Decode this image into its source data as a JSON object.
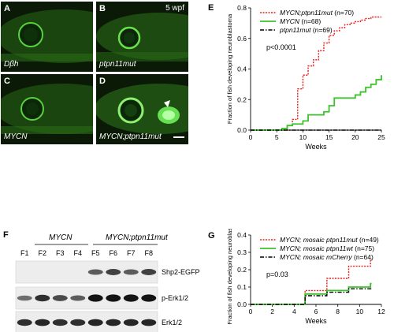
{
  "fish": {
    "panels": [
      {
        "letter": "A",
        "label": "Dβh"
      },
      {
        "letter": "B",
        "label": "ptpn11mut"
      },
      {
        "letter": "C",
        "label": "MYCN"
      },
      {
        "letter": "D",
        "label": "MYCN;ptpn11mut"
      }
    ],
    "time_label": "5 wpf",
    "fluorescence_color": "#3ddc2a"
  },
  "blot": {
    "letter": "F",
    "group1": "MYCN",
    "group2": "MYCN;ptpn11mut",
    "lanes": [
      "F1",
      "F2",
      "F3",
      "F4",
      "F5",
      "F6",
      "F7",
      "F8"
    ],
    "rows": [
      {
        "label": "Shp2-EGFP",
        "intensities": [
          0,
          0,
          0,
          0,
          0.6,
          0.75,
          0.6,
          0.75
        ]
      },
      {
        "label": "p-Erk1/2",
        "intensities": [
          0.5,
          0.85,
          0.7,
          0.6,
          1,
          1,
          1,
          1
        ]
      },
      {
        "label": "Erk1/2",
        "intensities": [
          0.85,
          0.9,
          0.85,
          0.85,
          0.9,
          0.9,
          0.9,
          0.9
        ]
      }
    ]
  },
  "chart_data": [
    {
      "panel": "E",
      "type": "line",
      "step": true,
      "xlabel": "Weeks",
      "ylabel": "Fraction of fish developing neuroblastoma",
      "xlim": [
        0,
        25
      ],
      "ylim": [
        0,
        0.8
      ],
      "xticks": [
        0,
        5,
        10,
        15,
        20,
        25
      ],
      "yticks": [
        0,
        0.2,
        0.4,
        0.6,
        0.8
      ],
      "yticklabels": [
        "0.0",
        "0.2",
        "0.4",
        "0.6",
        "0.8"
      ],
      "annotation": "p<0.0001",
      "legend_position": "top-right",
      "series": [
        {
          "label": "MYCN;ptpn11mut",
          "n": "(n=70)",
          "color": "#e8201c",
          "style": "dotted",
          "x": [
            0,
            7,
            8,
            9,
            10,
            11,
            12,
            13,
            14,
            15,
            16,
            17,
            18,
            19,
            20,
            21,
            22,
            23,
            25
          ],
          "y": [
            0,
            0.03,
            0.07,
            0.27,
            0.36,
            0.42,
            0.46,
            0.52,
            0.57,
            0.62,
            0.65,
            0.67,
            0.69,
            0.7,
            0.71,
            0.72,
            0.73,
            0.74,
            0.74
          ]
        },
        {
          "label": "MYCN",
          "n": "(n=68)",
          "color": "#3bc22c",
          "style": "solid",
          "x": [
            0,
            6,
            7,
            8,
            10,
            11,
            14,
            15,
            16,
            20,
            21,
            22,
            23,
            24,
            25
          ],
          "y": [
            0,
            0.01,
            0.03,
            0.04,
            0.06,
            0.1,
            0.12,
            0.16,
            0.21,
            0.23,
            0.25,
            0.28,
            0.3,
            0.33,
            0.36
          ]
        },
        {
          "label": "ptpn11mut",
          "n": "(n=69)",
          "color": "#000000",
          "style": "dashdot",
          "x": [
            0,
            25
          ],
          "y": [
            0,
            0
          ]
        }
      ]
    },
    {
      "panel": "G",
      "type": "line",
      "step": true,
      "xlabel": "Weeks",
      "ylabel": "Fraction of fish developing neuroblastoma",
      "xlim": [
        0,
        12
      ],
      "ylim": [
        0,
        0.4
      ],
      "xticks": [
        0,
        2,
        4,
        6,
        8,
        10,
        12
      ],
      "yticks": [
        0,
        0.1,
        0.2,
        0.3,
        0.4
      ],
      "yticklabels": [
        "0.0",
        "0.1",
        "0.2",
        "0.3",
        "0.4"
      ],
      "annotation": "p=0.03",
      "legend_position": "top-right",
      "series": [
        {
          "label": "MYCN; mosaic ptpn11mut",
          "n": "(n=49)",
          "color": "#e8201c",
          "style": "dotted",
          "x": [
            0,
            5,
            7,
            9,
            11,
            11.1
          ],
          "y": [
            0,
            0.08,
            0.15,
            0.22,
            0.26,
            0.26
          ]
        },
        {
          "label": "MYCN; mosaic ptpn11wt",
          "n": "(n=75)",
          "color": "#3bc22c",
          "style": "solid",
          "x": [
            0,
            5,
            7,
            9,
            11,
            11.1
          ],
          "y": [
            0,
            0.06,
            0.08,
            0.1,
            0.12,
            0.12
          ]
        },
        {
          "label": "MYCN; mosaic mCherry",
          "n": "(n=64)",
          "color": "#000000",
          "style": "dashdot",
          "x": [
            0,
            5,
            7,
            9,
            11,
            11.1
          ],
          "y": [
            0,
            0.05,
            0.07,
            0.09,
            0.09,
            0.09
          ]
        }
      ]
    }
  ]
}
